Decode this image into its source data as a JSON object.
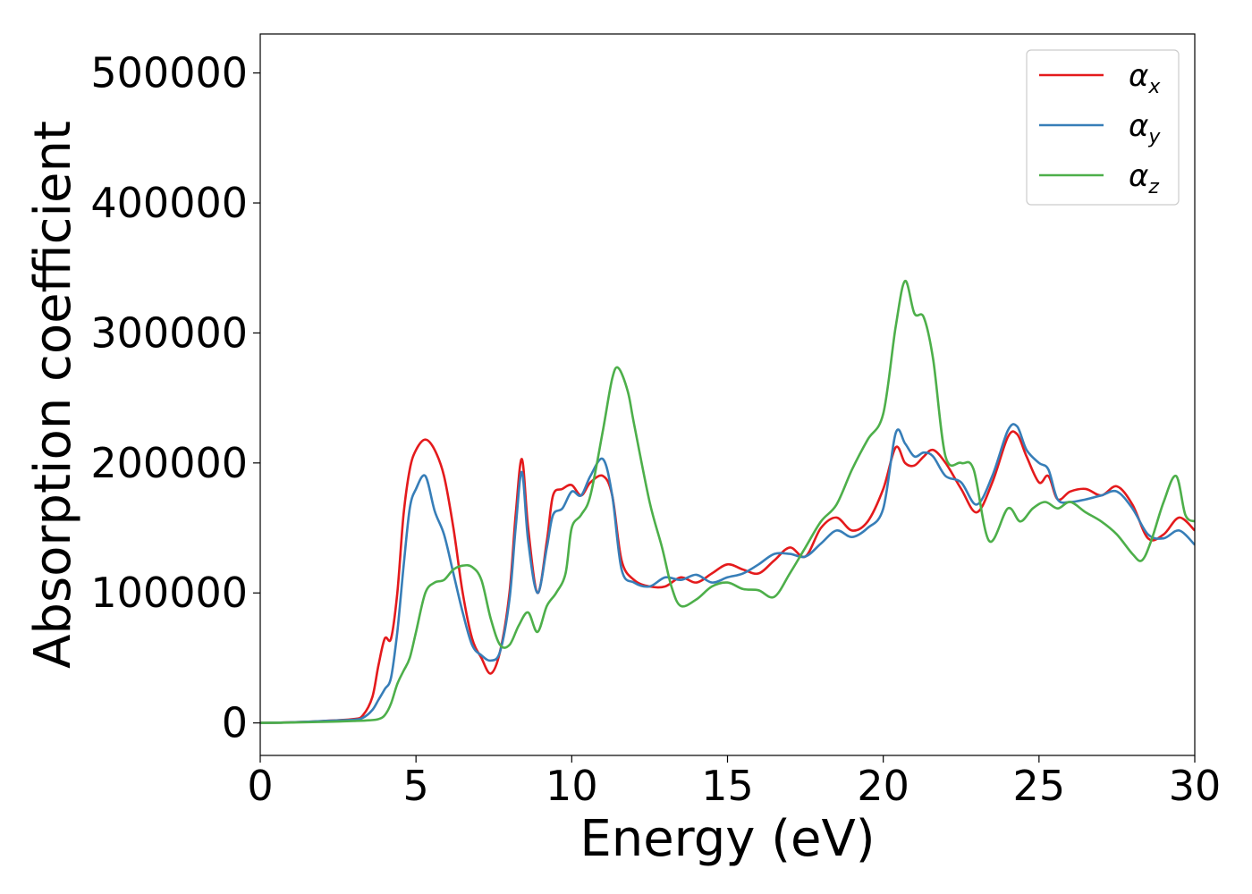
{
  "chart_data": {
    "type": "line",
    "xlabel": "Energy (eV)",
    "ylabel": "Absorption coefficient",
    "xlim": [
      0,
      30
    ],
    "ylim": [
      -25000,
      530000
    ],
    "xticks": [
      0,
      5,
      10,
      15,
      20,
      25,
      30
    ],
    "yticks": [
      0,
      100000,
      200000,
      300000,
      400000,
      500000
    ],
    "grid": false,
    "legend_position": "top-right",
    "series": [
      {
        "name": "α",
        "subscript": "x",
        "color": "#e41a1c",
        "x": [
          0,
          1,
          2,
          3,
          3.3,
          3.6,
          3.8,
          4.0,
          4.2,
          4.4,
          4.6,
          4.8,
          5.0,
          5.3,
          5.6,
          5.9,
          6.2,
          6.5,
          6.8,
          7.1,
          7.4,
          7.7,
          8.0,
          8.2,
          8.4,
          8.6,
          8.9,
          9.2,
          9.4,
          9.7,
          10.0,
          10.3,
          10.6,
          11.0,
          11.3,
          11.6,
          12.0,
          12.5,
          13.0,
          13.5,
          14.0,
          14.5,
          15.0,
          15.5,
          16.0,
          16.5,
          17.0,
          17.5,
          18.0,
          18.5,
          19.0,
          19.5,
          20.0,
          20.4,
          20.7,
          21.0,
          21.3,
          21.6,
          22.0,
          22.5,
          23.0,
          23.5,
          24.0,
          24.3,
          24.6,
          25.0,
          25.3,
          25.6,
          26.0,
          26.5,
          27.0,
          27.5,
          28.0,
          28.5,
          29.0,
          29.5,
          30.0
        ],
        "y": [
          0,
          500,
          1500,
          3000,
          6000,
          20000,
          45000,
          65000,
          65000,
          100000,
          160000,
          195000,
          210000,
          218000,
          210000,
          190000,
          150000,
          100000,
          65000,
          50000,
          38000,
          55000,
          100000,
          160000,
          203000,
          150000,
          100000,
          140000,
          175000,
          180000,
          183000,
          175000,
          185000,
          190000,
          175000,
          125000,
          110000,
          105000,
          105000,
          112000,
          108000,
          115000,
          122000,
          118000,
          115000,
          125000,
          135000,
          128000,
          150000,
          158000,
          148000,
          155000,
          180000,
          212000,
          200000,
          198000,
          205000,
          210000,
          200000,
          180000,
          162000,
          185000,
          220000,
          222000,
          205000,
          185000,
          190000,
          172000,
          178000,
          180000,
          175000,
          182000,
          168000,
          142000,
          145000,
          158000,
          148000
        ]
      },
      {
        "name": "α",
        "subscript": "y",
        "color": "#377eb8",
        "x": [
          0,
          1,
          2,
          3,
          3.3,
          3.6,
          3.8,
          4.0,
          4.2,
          4.4,
          4.6,
          4.8,
          5.0,
          5.3,
          5.6,
          5.9,
          6.2,
          6.5,
          6.8,
          7.1,
          7.4,
          7.7,
          8.0,
          8.2,
          8.4,
          8.6,
          8.9,
          9.2,
          9.4,
          9.7,
          10.0,
          10.3,
          10.6,
          11.0,
          11.3,
          11.6,
          12.0,
          12.5,
          13.0,
          13.5,
          14.0,
          14.5,
          15.0,
          15.5,
          16.0,
          16.5,
          17.0,
          17.5,
          18.0,
          18.5,
          19.0,
          19.5,
          20.0,
          20.4,
          20.7,
          21.0,
          21.3,
          21.6,
          22.0,
          22.5,
          23.0,
          23.5,
          24.0,
          24.3,
          24.6,
          25.0,
          25.3,
          25.6,
          26.0,
          26.5,
          27.0,
          27.5,
          28.0,
          28.5,
          29.0,
          29.5,
          30.0
        ],
        "y": [
          0,
          500,
          1500,
          2500,
          4000,
          10000,
          18000,
          26000,
          35000,
          70000,
          120000,
          165000,
          180000,
          190000,
          163000,
          145000,
          115000,
          85000,
          60000,
          52000,
          48000,
          55000,
          95000,
          150000,
          193000,
          140000,
          100000,
          135000,
          160000,
          165000,
          178000,
          175000,
          190000,
          203000,
          175000,
          118000,
          108000,
          105000,
          112000,
          110000,
          114000,
          108000,
          112000,
          115000,
          122000,
          130000,
          130000,
          128000,
          138000,
          148000,
          143000,
          150000,
          165000,
          223000,
          215000,
          205000,
          208000,
          205000,
          190000,
          185000,
          168000,
          190000,
          225000,
          228000,
          210000,
          200000,
          195000,
          172000,
          170000,
          172000,
          175000,
          178000,
          165000,
          145000,
          142000,
          148000,
          137000
        ]
      },
      {
        "name": "α",
        "subscript": "z",
        "color": "#4daf4a",
        "x": [
          0,
          1,
          2,
          3,
          3.5,
          3.8,
          4.0,
          4.2,
          4.4,
          4.6,
          4.8,
          5.0,
          5.3,
          5.6,
          5.9,
          6.2,
          6.5,
          6.8,
          7.1,
          7.4,
          7.7,
          8.0,
          8.3,
          8.6,
          8.9,
          9.2,
          9.5,
          9.8,
          10.0,
          10.3,
          10.6,
          11.0,
          11.3,
          11.5,
          11.8,
          12.0,
          12.5,
          12.9,
          13.2,
          13.5,
          14.0,
          14.5,
          15.0,
          15.5,
          16.0,
          16.5,
          17.0,
          17.5,
          18.0,
          18.5,
          19.0,
          19.5,
          20.0,
          20.4,
          20.7,
          21.0,
          21.3,
          21.6,
          22.0,
          22.5,
          22.9,
          23.4,
          24.0,
          24.4,
          24.8,
          25.2,
          25.6,
          26.0,
          26.5,
          27.0,
          27.5,
          28.0,
          28.3,
          28.6,
          29.0,
          29.4,
          29.7,
          30.0
        ],
        "y": [
          0,
          300,
          800,
          1500,
          2000,
          3000,
          6000,
          15000,
          30000,
          40000,
          50000,
          70000,
          100000,
          108000,
          110000,
          118000,
          121000,
          120000,
          110000,
          80000,
          60000,
          60000,
          75000,
          85000,
          70000,
          90000,
          100000,
          115000,
          150000,
          160000,
          175000,
          225000,
          265000,
          273000,
          255000,
          230000,
          170000,
          135000,
          105000,
          90000,
          95000,
          105000,
          108000,
          103000,
          102000,
          97000,
          115000,
          135000,
          155000,
          168000,
          195000,
          218000,
          238000,
          305000,
          340000,
          315000,
          312000,
          280000,
          205000,
          200000,
          195000,
          140000,
          165000,
          155000,
          165000,
          170000,
          165000,
          170000,
          162000,
          155000,
          145000,
          130000,
          125000,
          140000,
          170000,
          190000,
          160000,
          155000
        ]
      }
    ]
  }
}
